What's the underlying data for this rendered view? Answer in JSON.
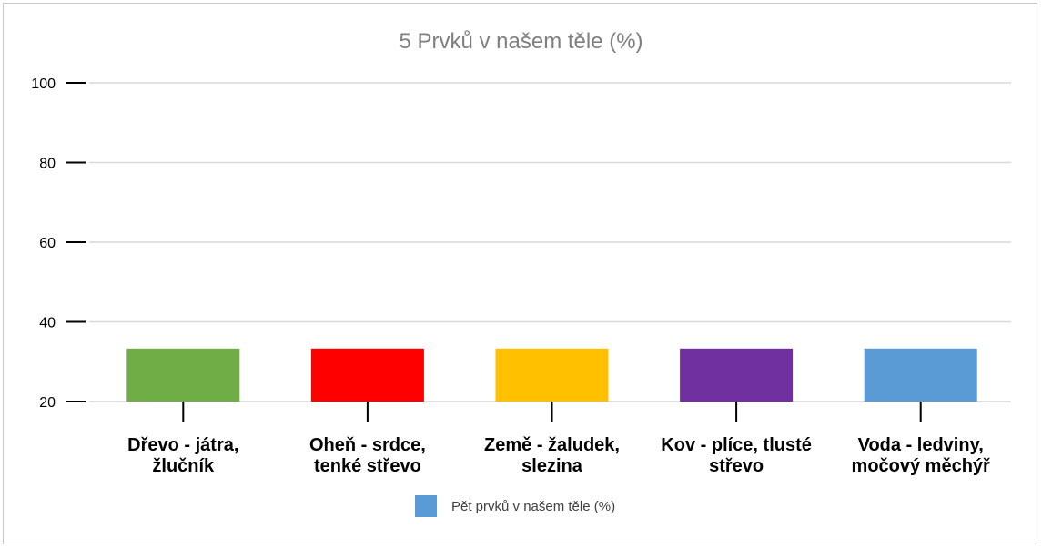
{
  "chart_data": {
    "type": "bar",
    "title": "5 Prvků v našem těle (%)",
    "categories": [
      "Dřevo - játra, žlučník",
      "Oheň - srdce, tenké střevo",
      "Země - žaludek, slezina",
      "Kov - plíce, tlusté střevo",
      "Voda - ledviny, močový měchýř"
    ],
    "category_lines": [
      [
        "Dřevo - játra,",
        "žlučník"
      ],
      [
        "Oheň - srdce,",
        "tenké střevo"
      ],
      [
        "Země - žaludek,",
        "slezina"
      ],
      [
        "Kov - plíce, tlusté",
        "střevo"
      ],
      [
        "Voda - ledviny,",
        "močový měchýř"
      ]
    ],
    "values": [
      33.3,
      33.3,
      33.3,
      33.3,
      33.3
    ],
    "bar_colors": [
      "#70ad47",
      "#ff0000",
      "#ffc000",
      "#7030a0",
      "#5b9bd5"
    ],
    "series": [
      {
        "name": "Pět prvků v našem těle (%)",
        "values": [
          33.3,
          33.3,
          33.3,
          33.3,
          33.3
        ],
        "color": "#5b9bd5"
      }
    ],
    "ylim": [
      20,
      100
    ],
    "yticks": [
      20,
      40,
      60,
      80,
      100
    ],
    "grid": true,
    "legend_position": "bottom",
    "xlabel": "",
    "ylabel": ""
  }
}
